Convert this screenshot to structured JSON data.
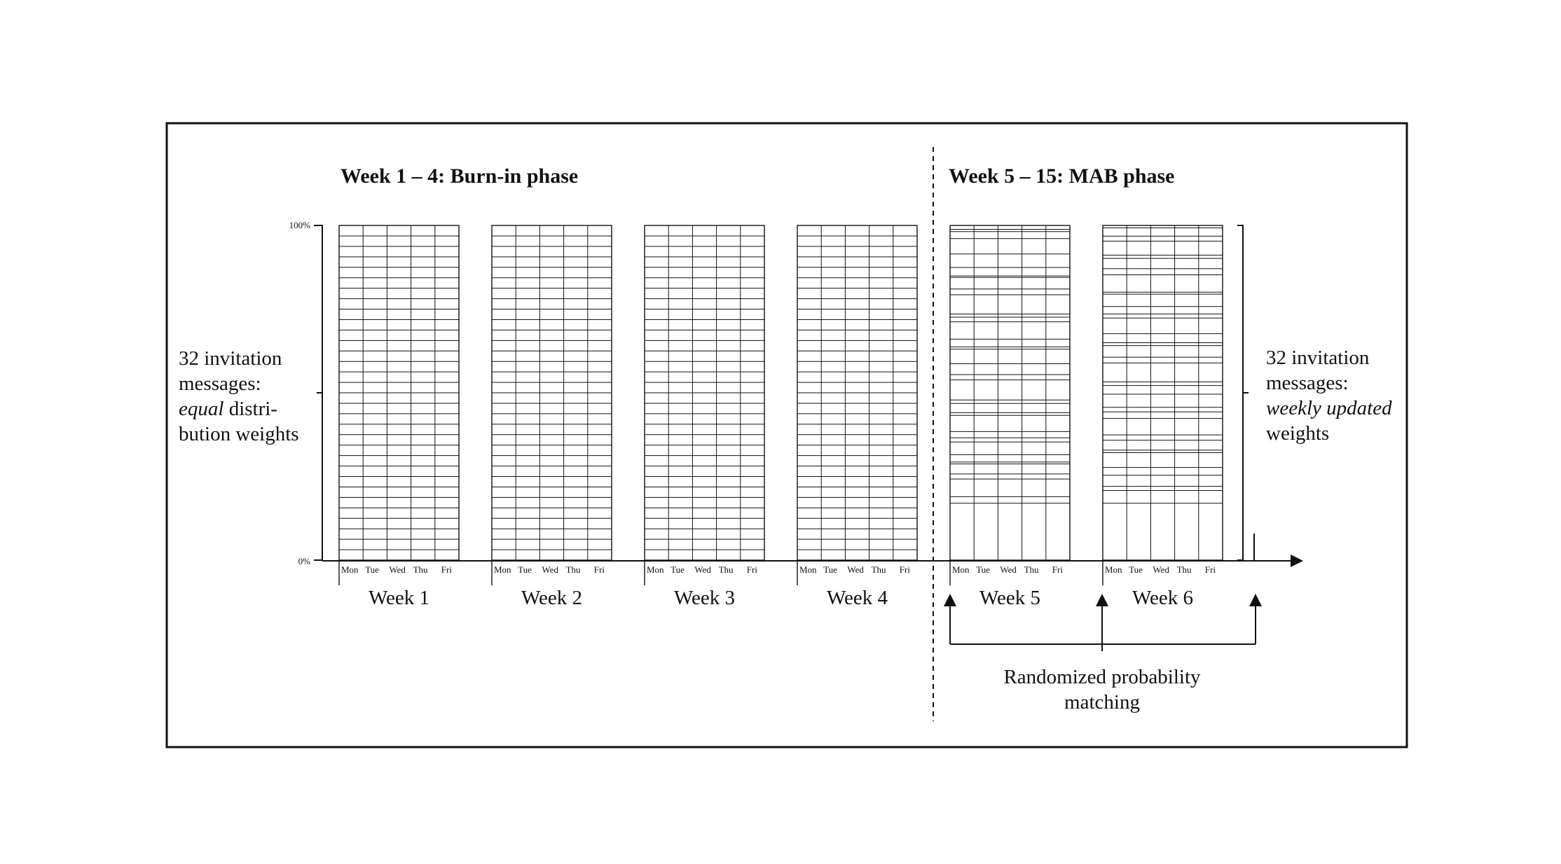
{
  "burn_in": {
    "title": "Week 1 – 4: Burn-in phase",
    "weeks": [
      "Week 1",
      "Week 2",
      "Week 3",
      "Week 4"
    ]
  },
  "mab": {
    "title": "Week 5 – 15: MAB phase",
    "weeks": [
      "Week 5",
      "Week 6"
    ]
  },
  "days": [
    "Mon",
    "Tue",
    "Wed",
    "Thu",
    "Fri"
  ],
  "axis": {
    "top_label": "100%",
    "bottom_label": "0%"
  },
  "left_note": {
    "line1": "32 invitation",
    "line2": "messages:",
    "line3_italic": "equal",
    "line3_rest": " distri-",
    "line4": "bution weights"
  },
  "right_note": {
    "line1": "32 invitation",
    "line2": "messages:",
    "line3_italic": "weekly updated",
    "line4": "weights"
  },
  "rpm": {
    "line1": "Randomized probability",
    "line2": "matching"
  },
  "messages_count": 32,
  "colors": {
    "line": "#111111",
    "background": "#ffffff"
  }
}
